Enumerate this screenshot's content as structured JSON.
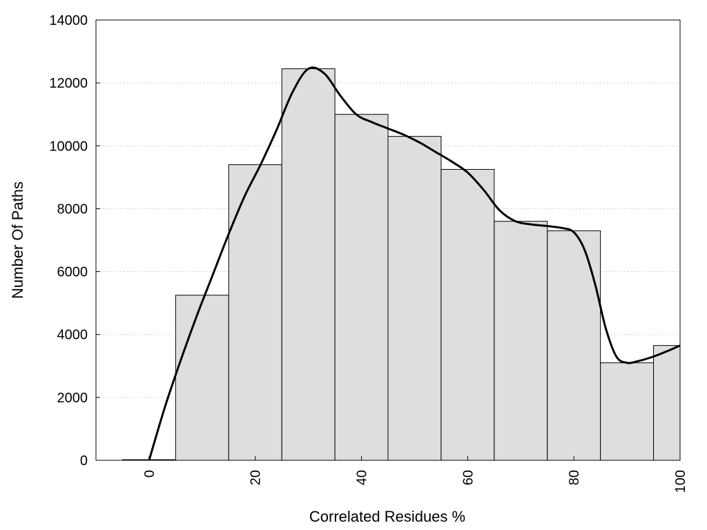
{
  "chart_data": {
    "type": "bar",
    "xlabel": "Correlated Residues %",
    "ylabel": "Number Of Paths",
    "xlim": [
      -10,
      100
    ],
    "ylim": [
      0,
      14000
    ],
    "x_ticks": [
      "0",
      "20",
      "40",
      "60",
      "80",
      "100"
    ],
    "x_tick_values": [
      0,
      20,
      40,
      60,
      80,
      100
    ],
    "y_ticks": [
      "0",
      "2000",
      "4000",
      "6000",
      "8000",
      "10000",
      "12000",
      "14000"
    ],
    "y_tick_values": [
      0,
      2000,
      4000,
      6000,
      8000,
      10000,
      12000,
      14000
    ],
    "grid": "horizontal dotted",
    "bin_width": 10,
    "bars": {
      "x": [
        0,
        10,
        20,
        30,
        40,
        50,
        60,
        70,
        80,
        90,
        100
      ],
      "values": [
        20,
        5250,
        9400,
        12450,
        11000,
        10300,
        9250,
        7600,
        7300,
        3100,
        3650
      ]
    },
    "curve": {
      "x": [
        0,
        3,
        6,
        9,
        12,
        15,
        18,
        21,
        24,
        27,
        30,
        33,
        36,
        39,
        42,
        45,
        48,
        51,
        54,
        57,
        60,
        63,
        66,
        69,
        72,
        75,
        78,
        80,
        82,
        84,
        86,
        88,
        90,
        92,
        95,
        98,
        100
      ],
      "y": [
        0,
        1700,
        3200,
        4600,
        5900,
        7200,
        8400,
        9400,
        10500,
        11700,
        12450,
        12300,
        11600,
        11000,
        10750,
        10550,
        10350,
        10100,
        9800,
        9500,
        9150,
        8600,
        7950,
        7600,
        7500,
        7450,
        7380,
        7250,
        6700,
        5600,
        4200,
        3300,
        3100,
        3150,
        3300,
        3500,
        3650
      ]
    },
    "colors": {
      "bar_fill": "#dedede",
      "bar_stroke": "#000000",
      "curve": "#000000",
      "grid": "#cfcfcf"
    }
  }
}
